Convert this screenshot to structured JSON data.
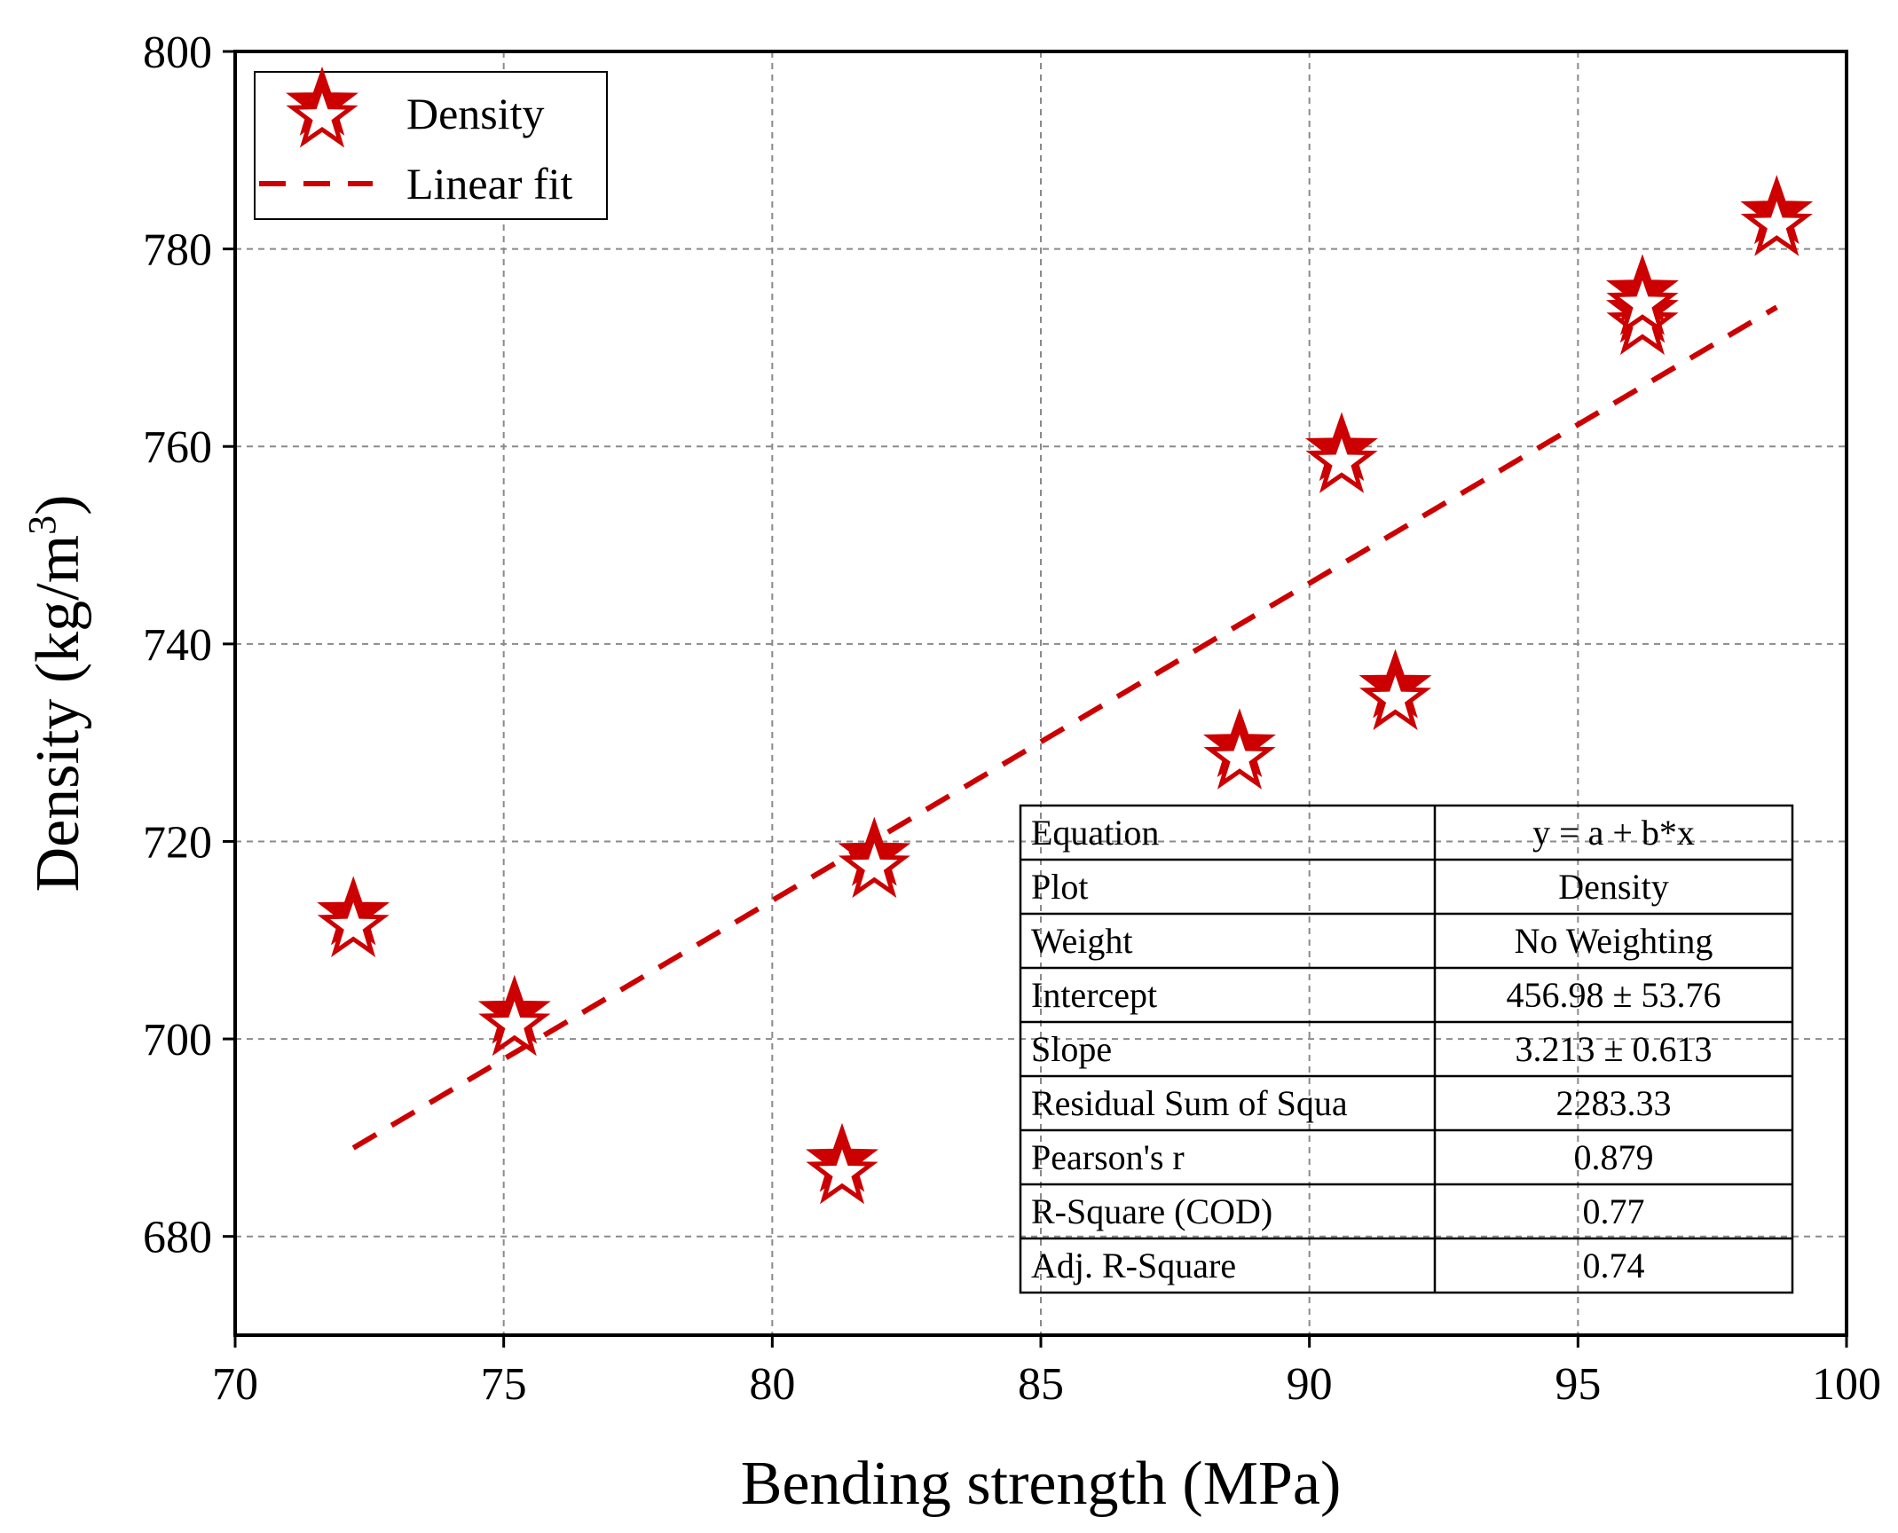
{
  "chart_data": {
    "type": "scatter",
    "title": "",
    "xlabel": "Bending strength (MPa)",
    "ylabel": "Density (kg/m³)",
    "xlim": [
      70,
      100
    ],
    "ylim": [
      670,
      800
    ],
    "xticks": [
      70,
      75,
      80,
      85,
      90,
      95,
      100
    ],
    "yticks": [
      680,
      700,
      720,
      740,
      760,
      780,
      800
    ],
    "grid": true,
    "legend_position": "top-left",
    "series": [
      {
        "name": "Density",
        "kind": "scatter",
        "marker": "star",
        "color": "#cc0000",
        "points": [
          {
            "x": 72.2,
            "y": 712
          },
          {
            "x": 75.2,
            "y": 702
          },
          {
            "x": 81.3,
            "y": 687
          },
          {
            "x": 81.9,
            "y": 718
          },
          {
            "x": 88.7,
            "y": 729
          },
          {
            "x": 90.6,
            "y": 759
          },
          {
            "x": 91.6,
            "y": 735
          },
          {
            "x": 96.2,
            "y": 773
          },
          {
            "x": 96.2,
            "y": 775
          },
          {
            "x": 98.7,
            "y": 783
          }
        ]
      },
      {
        "name": "Linear fit",
        "kind": "line",
        "style": "dashed",
        "color": "#cc0000",
        "intercept": 456.98,
        "slope": 3.213,
        "x_range": [
          72.2,
          98.7
        ]
      }
    ],
    "stats_table": [
      {
        "label": "Equation",
        "value": "y = a + b*x"
      },
      {
        "label": "Plot",
        "value": "Density"
      },
      {
        "label": "Weight",
        "value": "No Weighting"
      },
      {
        "label": "Intercept",
        "value": "456.98 ± 53.76"
      },
      {
        "label": "Slope",
        "value": "3.213 ± 0.613"
      },
      {
        "label": "Residual Sum of Squa",
        "value": "2283.33"
      },
      {
        "label": "Pearson's r",
        "value": "0.879"
      },
      {
        "label": "R-Square (COD)",
        "value": "0.77"
      },
      {
        "label": "Adj. R-Square",
        "value": "0.74"
      }
    ]
  },
  "ylabel_parts": {
    "main": "Density (kg/m",
    "sup": "3",
    "close": ")"
  },
  "colors": {
    "series": "#cc0000",
    "axis": "#000000",
    "grid": "#8a8a8a",
    "background": "#ffffff"
  }
}
